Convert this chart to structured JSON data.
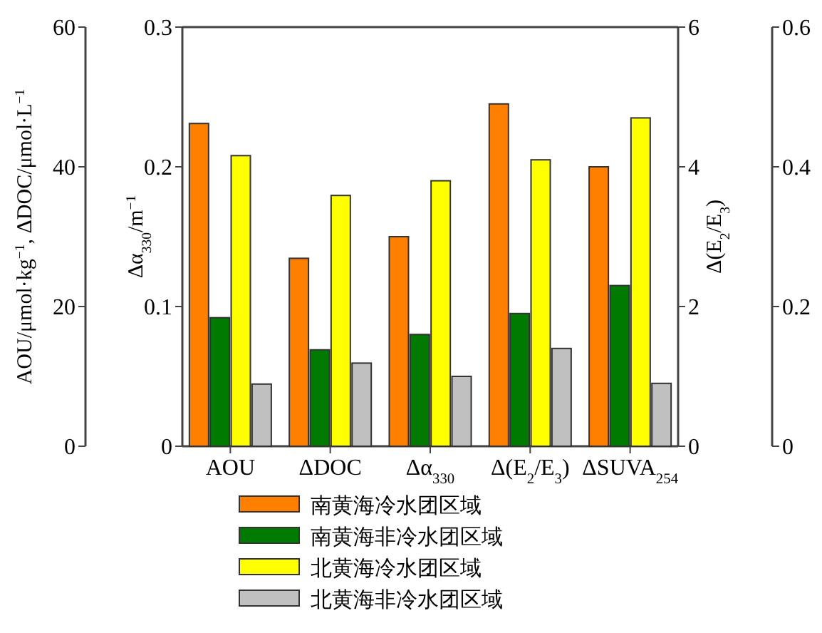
{
  "chart_data": [
    {
      "type": "bar",
      "categories": [
        "AOU",
        "ΔDOC",
        "Δα$_{330}$",
        "Δ(E$_{2}$/E$_{3}$)"
      ],
      "ylabel": "AOU/μmol·kg$^{−1}$, ΔDOC/μmol·L$^{−1}$",
      "y2label": "Δα$_{330}$/m$^{−1}$",
      "y3label": "Δ(E$_{2}$/E$_{3}$)",
      "ylim": [
        0,
        60
      ],
      "yticks": [
        0,
        20,
        40,
        60
      ],
      "y2lim": [
        0,
        0.3
      ],
      "y2ticks": [
        0,
        0.1,
        0.2,
        0.3
      ],
      "y3lim": [
        0,
        6
      ],
      "y3ticks": [
        0,
        2,
        4,
        6
      ],
      "legend": "bottom",
      "series": [
        {
          "name": "南黄海冷水团区域",
          "color": "#ff8000",
          "values": [
            46.2,
            26.9,
            null,
            null
          ]
        },
        {
          "name": "南黄海非冷水团区域",
          "color": "#007a00",
          "values": [
            18.4,
            13.8,
            null,
            null
          ]
        },
        {
          "name": "北黄海冷水团区域",
          "color": "#ffff00",
          "values": [
            41.6,
            35.9,
            null,
            null
          ]
        },
        {
          "name": "北黄海非冷水团区域",
          "color": "#c0c0c0",
          "values": [
            8.9,
            11.9,
            null,
            null
          ]
        },
        {
          "color": "#ff8000",
          "axis": "y2",
          "values": [
            null,
            null,
            0.15,
            null
          ]
        },
        {
          "color": "#007a00",
          "axis": "y2",
          "values": [
            null,
            null,
            0.08,
            null
          ]
        },
        {
          "color": "#ffff00",
          "axis": "y2",
          "values": [
            null,
            null,
            0.19,
            null
          ]
        },
        {
          "color": "#c0c0c0",
          "axis": "y2",
          "values": [
            null,
            null,
            0.05,
            null
          ]
        },
        {
          "color": "#ff8000",
          "axis": "y3",
          "values": [
            null,
            null,
            null,
            4.9
          ]
        },
        {
          "color": "#007a00",
          "axis": "y3",
          "values": [
            null,
            null,
            null,
            1.9
          ]
        },
        {
          "color": "#ffff00",
          "axis": "y3",
          "values": [
            null,
            null,
            null,
            4.1
          ]
        },
        {
          "color": "#c0c0c0",
          "axis": "y3",
          "values": [
            null,
            null,
            null,
            1.4
          ]
        }
      ]
    },
    {
      "type": "bar",
      "categories": [
        "ΔSUVA$_{254}$"
      ],
      "ylim": [
        0,
        0.6
      ],
      "yticks": [
        0,
        0.2,
        0.4,
        0.6
      ],
      "series": [
        {
          "color": "#ff8000",
          "values": [
            0.4
          ]
        },
        {
          "color": "#007a00",
          "values": [
            0.23
          ]
        },
        {
          "color": "#ffff00",
          "values": [
            0.47
          ]
        },
        {
          "color": "#c0c0c0",
          "values": [
            0.09
          ]
        }
      ]
    }
  ]
}
